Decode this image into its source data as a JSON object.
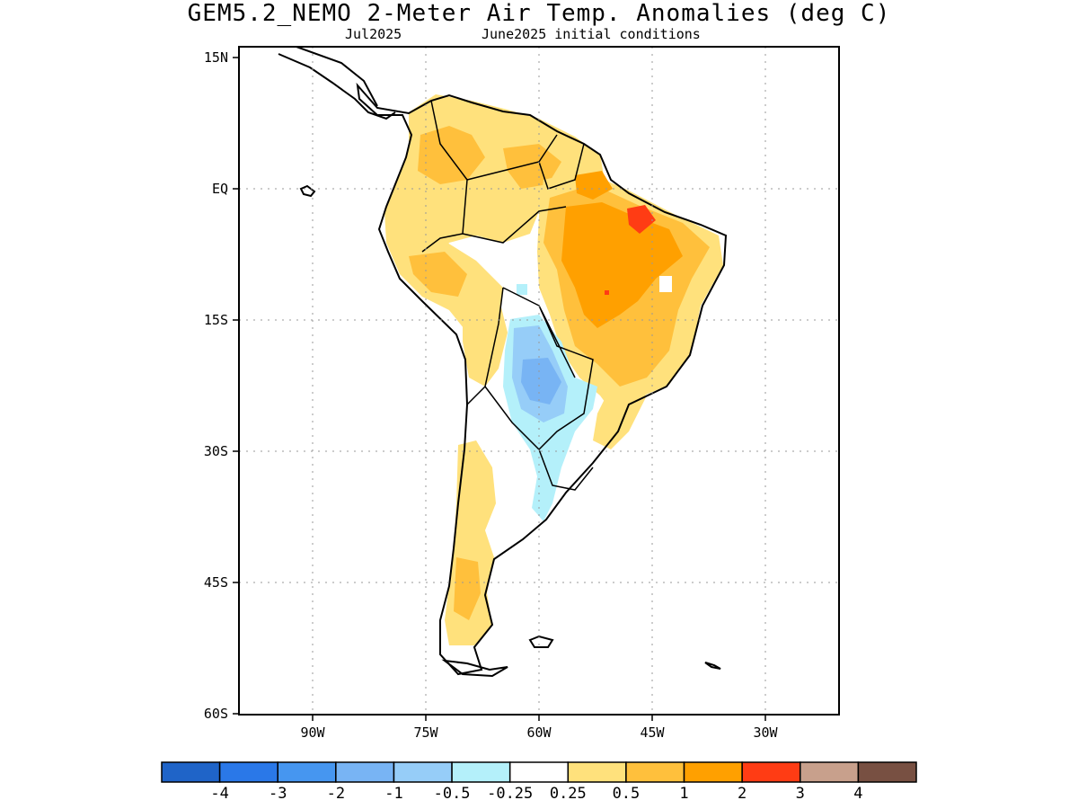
{
  "header": {
    "title": "GEM5.2_NEMO 2-Meter Air Temp. Anomalies (deg C)",
    "period": "Jul2025",
    "init": "June2025 initial conditions"
  },
  "map": {
    "lat_labels": [
      "15N",
      "EQ",
      "15S",
      "30S",
      "45S",
      "60S"
    ],
    "lon_labels": [
      "90W",
      "75W",
      "60W",
      "45W",
      "30W"
    ],
    "gridlines": "dotted"
  },
  "colorbar": {
    "colors": [
      "#1f64c8",
      "#2a78e8",
      "#4696f0",
      "#78b4f4",
      "#96cdf8",
      "#b4f0fa",
      "#ffffff",
      "#ffe17c",
      "#ffc03c",
      "#ffa000",
      "#ff3c14",
      "#c8a08c",
      "#785042"
    ],
    "labels": [
      "-4",
      "-3",
      "-2",
      "-1",
      "-0.5",
      "-0.25",
      "0.25",
      "0.5",
      "1",
      "2",
      "3",
      "4"
    ]
  },
  "anomaly_palette": {
    "neutral": "#ffffff",
    "weak_warm": "#ffe17c",
    "warm": "#ffc03c",
    "strong_warm": "#ffa000",
    "hot": "#ff3c14",
    "weak_cool": "#b4f0fa",
    "cool": "#96cdf8",
    "cooler": "#78b4f4"
  }
}
